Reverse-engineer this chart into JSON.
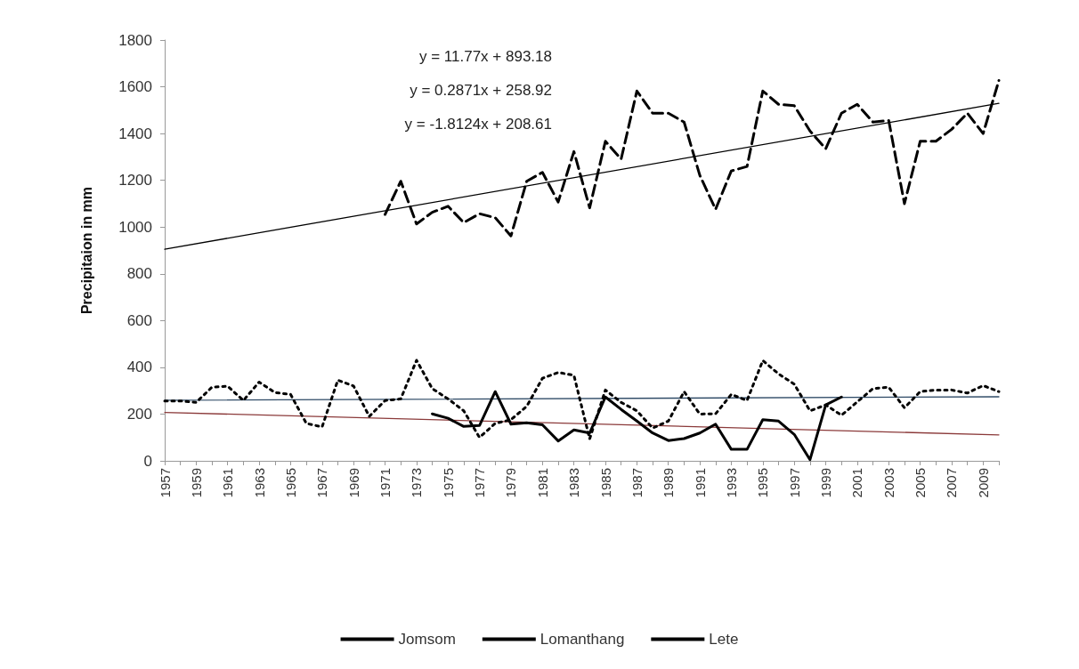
{
  "chart_data": {
    "type": "line",
    "ylabel": "Precipitaion in mm",
    "categories": [
      "1957",
      null,
      "1959",
      null,
      "1961",
      null,
      "1963",
      null,
      "1965",
      null,
      "1967",
      null,
      "1969",
      null,
      "1971",
      null,
      "1973",
      null,
      "1975",
      null,
      "1977",
      null,
      "1979",
      null,
      "1981",
      null,
      "1983",
      null,
      "1985",
      null,
      "1987",
      null,
      "1989",
      null,
      "1991",
      null,
      "1993",
      null,
      "1995",
      null,
      "1997",
      null,
      "1999",
      null,
      "2001",
      null,
      "2003",
      null,
      "2005",
      null,
      "2007",
      null,
      "2009",
      null
    ],
    "series": [
      {
        "name": "Jomsom",
        "color": "#000000",
        "line_style": "dotted",
        "values": [
          256,
          256,
          250,
          315,
          319,
          258,
          337,
          292,
          284,
          160,
          145,
          345,
          320,
          190,
          258,
          265,
          430,
          309,
          265,
          214,
          100,
          160,
          176,
          233,
          353,
          378,
          366,
          94,
          303,
          250,
          214,
          140,
          170,
          296,
          200,
          201,
          284,
          258,
          429,
          372,
          328,
          214,
          239,
          195,
          252,
          309,
          315,
          227,
          296,
          303,
          303,
          290,
          322,
          296
        ]
      },
      {
        "name": "Lomanthang",
        "color": "#000000",
        "line_style": "solid",
        "values": [
          null,
          null,
          null,
          null,
          null,
          null,
          null,
          null,
          null,
          null,
          null,
          null,
          null,
          null,
          null,
          null,
          null,
          201,
          182,
          147,
          151,
          296,
          157,
          163,
          154,
          85,
          132,
          119,
          273,
          220,
          170,
          119,
          87,
          95,
          119,
          157,
          49,
          49,
          176,
          170,
          113,
          5,
          239,
          273,
          null,
          null,
          null,
          null,
          null,
          null,
          null,
          null,
          null,
          null
        ]
      },
      {
        "name": "Lete",
        "color": "#000000",
        "line_style": "dashed",
        "values": [
          null,
          null,
          null,
          null,
          null,
          null,
          null,
          null,
          null,
          null,
          null,
          null,
          null,
          null,
          1054,
          1196,
          1013,
          1063,
          1089,
          1019,
          1057,
          1040,
          962,
          1196,
          1234,
          1107,
          1323,
          1082,
          1367,
          1291,
          1582,
          1487,
          1487,
          1449,
          1221,
          1076,
          1240,
          1259,
          1582,
          1525,
          1519,
          1411,
          1335,
          1487,
          1525,
          1449,
          1456,
          1100,
          1367,
          1367,
          1418,
          1487,
          1400,
          1627
        ]
      },
      {
        "color": "#000000",
        "line_style": "solid",
        "values": [
          905,
          null,
          null,
          null,
          null,
          null,
          null,
          null,
          null,
          null,
          null,
          null,
          null,
          null,
          null,
          null,
          null,
          null,
          null,
          null,
          null,
          null,
          null,
          null,
          null,
          null,
          null,
          null,
          null,
          null,
          null,
          null,
          null,
          null,
          null,
          null,
          null,
          null,
          null,
          null,
          null,
          null,
          null,
          null,
          null,
          null,
          null,
          null,
          null,
          null,
          null,
          null,
          null,
          1529
        ]
      },
      {
        "color": "#2e4a66",
        "line_style": "solid",
        "values": [
          259,
          null,
          null,
          null,
          null,
          null,
          null,
          null,
          null,
          null,
          null,
          null,
          null,
          null,
          null,
          null,
          null,
          null,
          null,
          null,
          null,
          null,
          null,
          null,
          null,
          null,
          null,
          null,
          null,
          null,
          null,
          null,
          null,
          null,
          null,
          null,
          null,
          null,
          null,
          null,
          null,
          null,
          null,
          null,
          null,
          null,
          null,
          null,
          null,
          null,
          null,
          null,
          null,
          274
        ]
      },
      {
        "color": "#8b3a3a",
        "line_style": "solid",
        "values": [
          207,
          null,
          null,
          null,
          null,
          null,
          null,
          null,
          null,
          null,
          null,
          null,
          null,
          null,
          null,
          null,
          null,
          null,
          null,
          null,
          null,
          null,
          null,
          null,
          null,
          null,
          null,
          null,
          null,
          null,
          null,
          null,
          null,
          null,
          null,
          null,
          null,
          null,
          null,
          null,
          null,
          null,
          null,
          null,
          null,
          null,
          null,
          null,
          null,
          null,
          null,
          null,
          null,
          111
        ]
      }
    ],
    "annotations": [
      "y = 11.77x + 893.18",
      "y = 0.2871x + 258.92",
      "y = -1.8124x + 208.61"
    ],
    "ylim": [
      0,
      1800
    ],
    "yticks": [
      0,
      200,
      400,
      600,
      800,
      1000,
      1200,
      1400,
      1600,
      1800
    ],
    "grid": false,
    "legend": "bottom",
    "marker": "none"
  }
}
